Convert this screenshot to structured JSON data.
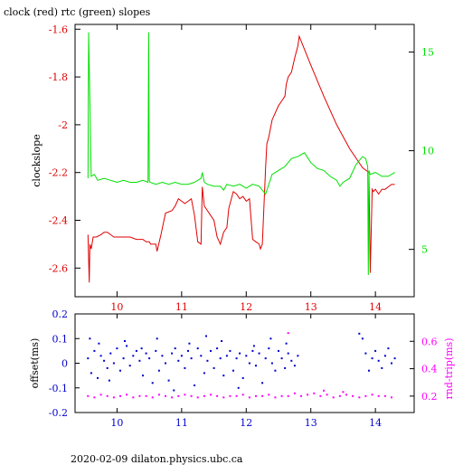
{
  "header": {
    "title": "clock (red) rtc (green) slopes"
  },
  "footer": {
    "text": "2020-02-09  dilaton.physics.ubc.ca"
  },
  "colors": {
    "red": "#e00000",
    "green": "#00e000",
    "blue": "#0000cc",
    "magenta": "#ff00ff",
    "axis": "#000000"
  },
  "chart_data": [
    {
      "type": "line",
      "title": "clock (red) rtc (green) slopes",
      "ylabel": "clockslope",
      "xlim": [
        9.35,
        14.6
      ],
      "ylim": [
        -2.72,
        -1.58
      ],
      "y2lim": [
        2.6,
        16.4
      ],
      "xticks": [
        10,
        11,
        12,
        13,
        14
      ],
      "xtick_labels": [
        "10",
        "11",
        "12",
        "13",
        "14"
      ],
      "yticks": [
        -1.6,
        -1.8,
        -2,
        -2.2,
        -2.4,
        -2.6
      ],
      "ytick_labels": [
        "-1.6",
        "-1.8",
        "-2",
        "-2.2",
        "-2.4",
        "-2.6"
      ],
      "y2ticks": [
        5,
        10,
        15
      ],
      "y2tick_labels": [
        "5",
        "10",
        "15"
      ],
      "series": [
        {
          "name": "clock",
          "axis": "left",
          "color": "#e00000",
          "x": [
            9.55,
            9.57,
            9.58,
            9.6,
            9.63,
            9.68,
            9.75,
            9.8,
            9.85,
            9.9,
            9.95,
            10.0,
            10.1,
            10.2,
            10.3,
            10.4,
            10.45,
            10.5,
            10.52,
            10.6,
            10.62,
            10.68,
            10.75,
            10.85,
            10.9,
            10.95,
            11.0,
            11.05,
            11.1,
            11.15,
            11.2,
            11.25,
            11.3,
            11.32,
            11.35,
            11.4,
            11.45,
            11.5,
            11.55,
            11.6,
            11.65,
            11.7,
            11.73,
            11.8,
            11.85,
            11.9,
            11.95,
            12.0,
            12.05,
            12.1,
            12.15,
            12.2,
            12.22,
            12.25,
            12.3,
            12.32,
            12.35,
            12.4,
            12.45,
            12.5,
            12.55,
            12.6,
            12.62,
            12.65,
            12.7,
            12.75,
            12.8,
            12.82,
            13.0,
            13.2,
            13.4,
            13.6,
            13.8,
            13.9,
            13.92,
            13.95,
            13.97,
            14.0,
            14.05,
            14.1,
            14.15,
            14.2,
            14.25,
            14.3
          ],
          "values": [
            -2.46,
            -2.66,
            -2.5,
            -2.52,
            -2.47,
            -2.47,
            -2.46,
            -2.45,
            -2.45,
            -2.46,
            -2.47,
            -2.47,
            -2.47,
            -2.47,
            -2.48,
            -2.48,
            -2.49,
            -2.49,
            -2.5,
            -2.5,
            -2.53,
            -2.46,
            -2.37,
            -2.36,
            -2.34,
            -2.31,
            -2.32,
            -2.33,
            -2.32,
            -2.31,
            -2.38,
            -2.49,
            -2.5,
            -2.26,
            -2.34,
            -2.36,
            -2.38,
            -2.4,
            -2.47,
            -2.5,
            -2.45,
            -2.43,
            -2.35,
            -2.28,
            -2.29,
            -2.31,
            -2.3,
            -2.32,
            -2.31,
            -2.48,
            -2.49,
            -2.5,
            -2.52,
            -2.5,
            -2.18,
            -2.08,
            -2.05,
            -1.98,
            -1.95,
            -1.92,
            -1.9,
            -1.88,
            -1.83,
            -1.8,
            -1.78,
            -1.72,
            -1.67,
            -1.63,
            -1.75,
            -1.88,
            -2.0,
            -2.1,
            -2.18,
            -2.2,
            -2.62,
            -2.27,
            -2.28,
            -2.27,
            -2.29,
            -2.27,
            -2.27,
            -2.26,
            -2.25,
            -2.25
          ]
        },
        {
          "name": "rtc",
          "axis": "right",
          "color": "#00e000",
          "x": [
            9.55,
            9.56,
            9.6,
            9.65,
            9.7,
            9.8,
            9.9,
            10.0,
            10.1,
            10.2,
            10.3,
            10.4,
            10.48,
            10.49,
            10.5,
            10.51,
            10.6,
            10.7,
            10.8,
            10.9,
            11.0,
            11.1,
            11.2,
            11.3,
            11.32,
            11.35,
            11.4,
            11.5,
            11.6,
            11.65,
            11.7,
            11.8,
            11.9,
            12.0,
            12.1,
            12.2,
            12.3,
            12.4,
            12.5,
            12.6,
            12.7,
            12.8,
            12.9,
            13.0,
            13.1,
            13.2,
            13.3,
            13.35,
            13.4,
            13.45,
            13.5,
            13.55,
            13.6,
            13.7,
            13.8,
            13.85,
            13.88,
            13.89,
            13.9,
            13.92,
            14.0,
            14.1,
            14.2,
            14.3
          ],
          "values": [
            8.6,
            16.0,
            8.7,
            8.8,
            8.5,
            8.6,
            8.5,
            8.4,
            8.5,
            8.4,
            8.4,
            8.5,
            8.4,
            16.0,
            8.5,
            8.4,
            8.3,
            8.4,
            8.3,
            8.4,
            8.3,
            8.3,
            8.4,
            8.6,
            8.9,
            8.4,
            8.3,
            8.2,
            8.2,
            8.0,
            8.3,
            8.2,
            8.3,
            8.1,
            8.3,
            8.2,
            7.8,
            8.8,
            9.0,
            9.2,
            9.6,
            9.7,
            9.9,
            9.4,
            9.1,
            9.0,
            8.7,
            8.6,
            8.5,
            8.2,
            8.4,
            8.5,
            8.6,
            9.3,
            9.7,
            9.6,
            9.2,
            3.7,
            9.0,
            8.8,
            8.9,
            8.7,
            8.7,
            8.9
          ]
        }
      ]
    },
    {
      "type": "scatter",
      "ylabel": "offset(ms)",
      "y2label": "rnd-trip(ms)",
      "xlim": [
        9.35,
        14.6
      ],
      "ylim": [
        -0.2,
        0.2
      ],
      "y2lim": [
        0.08,
        0.8
      ],
      "xticks": [
        10,
        11,
        12,
        13,
        14
      ],
      "xtick_labels": [
        "10",
        "11",
        "12",
        "13",
        "14"
      ],
      "yticks": [
        0.2,
        0.1,
        0,
        -0.1,
        -0.2
      ],
      "ytick_labels": [
        "0.2",
        "0.1",
        "0",
        "-0.1",
        "-0.2"
      ],
      "y2ticks": [
        0.6,
        0.4,
        0.2
      ],
      "y2tick_labels": [
        "0.6",
        "0.4",
        "0.2"
      ],
      "series": [
        {
          "name": "offset",
          "axis": "left",
          "color": "#0000cc",
          "x": [
            9.55,
            9.6,
            9.65,
            9.7,
            9.75,
            9.8,
            9.85,
            9.9,
            9.95,
            10.0,
            10.05,
            10.1,
            10.15,
            10.2,
            10.25,
            10.3,
            10.35,
            10.4,
            10.45,
            10.5,
            10.55,
            10.6,
            10.65,
            10.7,
            10.75,
            10.8,
            10.85,
            10.9,
            10.95,
            11.0,
            11.05,
            11.1,
            11.15,
            11.2,
            11.25,
            11.3,
            11.35,
            11.4,
            11.45,
            11.5,
            11.55,
            11.6,
            11.65,
            11.7,
            11.75,
            11.8,
            11.85,
            11.9,
            11.95,
            12.0,
            12.05,
            12.1,
            12.15,
            12.2,
            12.25,
            12.3,
            12.35,
            12.4,
            12.45,
            12.5,
            12.55,
            12.6,
            12.65,
            12.7,
            12.75,
            12.8,
            13.75,
            13.8,
            13.85,
            13.9,
            13.95,
            14.0,
            14.05,
            14.1,
            14.15,
            14.2,
            14.25,
            14.3,
            9.58,
            9.72,
            9.88,
            10.12,
            10.38,
            10.62,
            10.88,
            11.12,
            11.38,
            11.62,
            11.88,
            12.12,
            12.38,
            12.62
          ],
          "values": [
            0.02,
            -0.04,
            0.05,
            -0.06,
            0.03,
            0.01,
            -0.02,
            0.04,
            0.0,
            0.06,
            -0.03,
            0.02,
            0.07,
            -0.01,
            0.03,
            0.05,
            0.01,
            -0.05,
            0.04,
            0.02,
            -0.08,
            0.05,
            -0.03,
            0.03,
            0.0,
            -0.07,
            0.04,
            0.06,
            0.01,
            0.03,
            -0.02,
            0.05,
            0.02,
            -0.09,
            0.06,
            0.03,
            -0.04,
            0.01,
            0.05,
            -0.02,
            0.06,
            0.02,
            -0.05,
            0.03,
            0.05,
            -0.03,
            0.02,
            0.04,
            -0.06,
            0.03,
            0.0,
            0.05,
            -0.01,
            0.04,
            -0.08,
            0.02,
            0.06,
            0.0,
            -0.03,
            0.05,
            0.02,
            -0.02,
            0.04,
            0.01,
            -0.01,
            0.03,
            0.12,
            0.1,
            0.04,
            -0.03,
            0.02,
            0.05,
            0.01,
            -0.02,
            0.03,
            0.06,
            0.0,
            0.02,
            0.1,
            0.08,
            -0.07,
            0.09,
            0.06,
            0.1,
            -0.11,
            0.08,
            0.11,
            0.09,
            -0.1,
            0.07,
            0.1,
            0.08
          ]
        },
        {
          "name": "rnd-trip",
          "axis": "right",
          "color": "#ff00ff",
          "x": [
            9.55,
            9.65,
            9.75,
            9.85,
            9.95,
            10.05,
            10.15,
            10.25,
            10.35,
            10.45,
            10.55,
            10.65,
            10.75,
            10.85,
            10.95,
            11.05,
            11.15,
            11.25,
            11.35,
            11.45,
            11.55,
            11.65,
            11.75,
            11.85,
            11.95,
            12.05,
            12.15,
            12.25,
            12.35,
            12.45,
            12.55,
            12.65,
            12.75,
            12.85,
            12.95,
            13.05,
            13.15,
            13.25,
            13.35,
            13.45,
            13.55,
            13.65,
            13.75,
            13.85,
            13.95,
            14.05,
            14.15,
            14.25,
            12.65,
            13.2,
            13.5
          ],
          "values": [
            0.2,
            0.19,
            0.21,
            0.2,
            0.19,
            0.2,
            0.21,
            0.19,
            0.2,
            0.2,
            0.19,
            0.21,
            0.2,
            0.19,
            0.2,
            0.21,
            0.2,
            0.19,
            0.2,
            0.21,
            0.2,
            0.19,
            0.2,
            0.2,
            0.21,
            0.19,
            0.2,
            0.2,
            0.21,
            0.19,
            0.2,
            0.2,
            0.22,
            0.2,
            0.21,
            0.22,
            0.2,
            0.21,
            0.19,
            0.2,
            0.21,
            0.2,
            0.19,
            0.2,
            0.21,
            0.2,
            0.2,
            0.19,
            0.66,
            0.24,
            0.23
          ]
        }
      ]
    }
  ]
}
